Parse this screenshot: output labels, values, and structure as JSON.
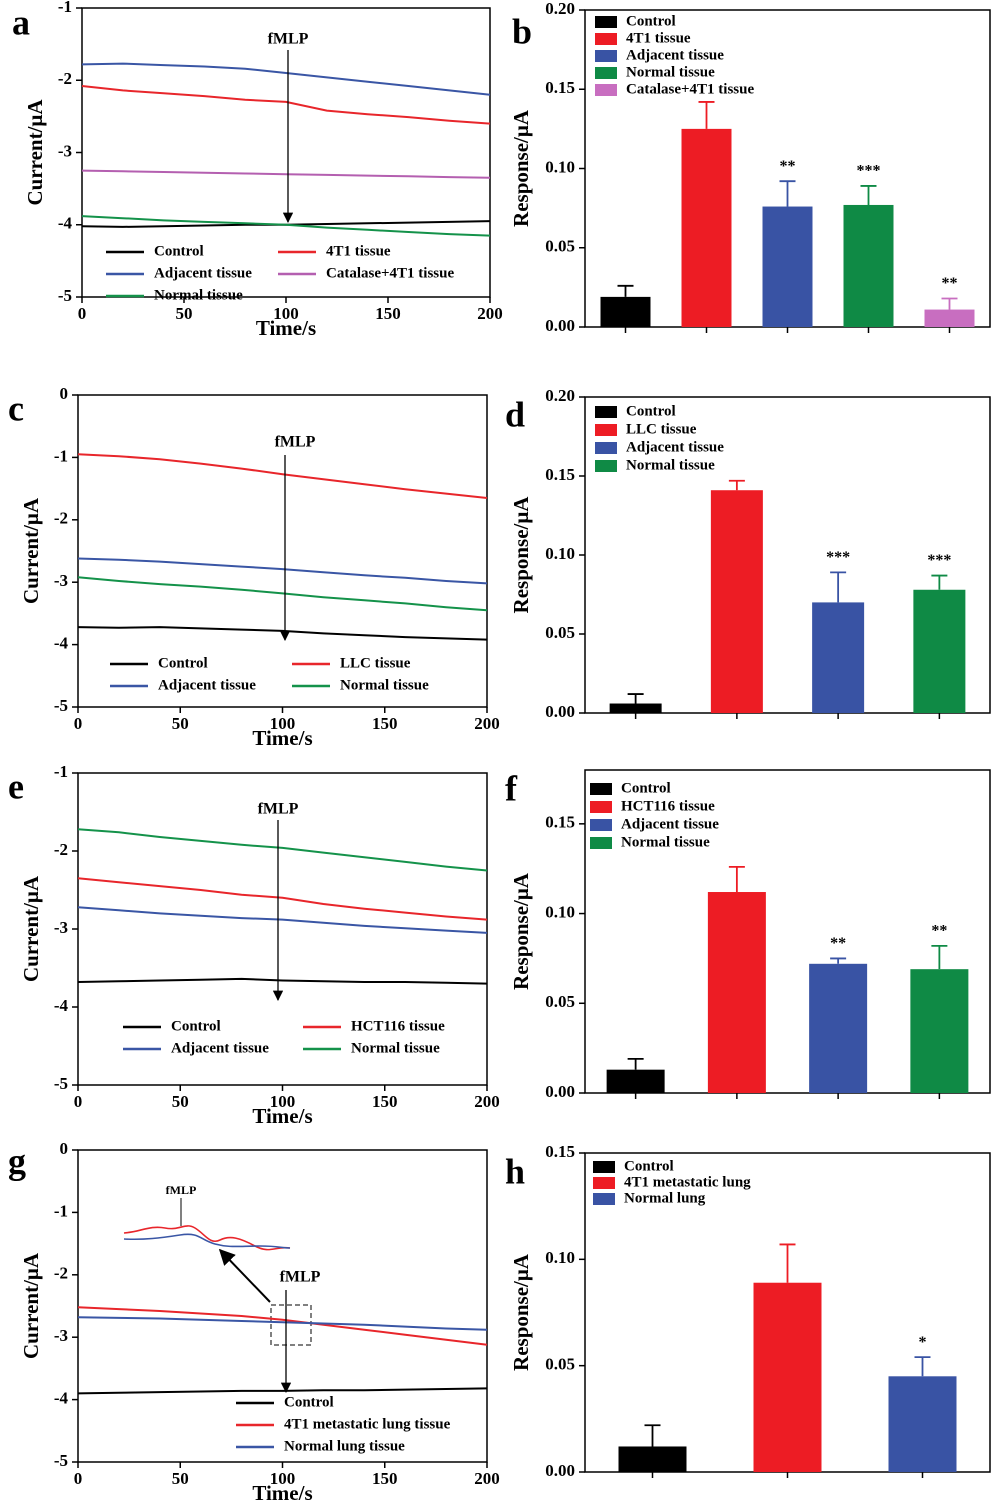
{
  "chart_data": [
    {
      "type": "line",
      "label": "a",
      "xlabel": "Time/s",
      "ylabel": "Current/μA",
      "annotation": "fMLP",
      "x": [
        0,
        20,
        40,
        60,
        80,
        100,
        120,
        140,
        160,
        180,
        200
      ],
      "xlim": [
        0,
        200
      ],
      "xticks": [
        0,
        50,
        100,
        150,
        200
      ],
      "ylim": [
        -5,
        -1
      ],
      "yticks": [
        -5,
        -4,
        -3,
        -2,
        -1
      ],
      "series": [
        {
          "name": "Control",
          "color": "#000000",
          "values": [
            -4.02,
            -4.03,
            -4.02,
            -4.01,
            -4.0,
            -4.0,
            -3.99,
            -3.98,
            -3.97,
            -3.96,
            -3.95
          ]
        },
        {
          "name": "4T1 tissue",
          "color": "#e8262b",
          "values": [
            -2.08,
            -2.14,
            -2.18,
            -2.22,
            -2.27,
            -2.3,
            -2.42,
            -2.47,
            -2.51,
            -2.56,
            -2.6
          ]
        },
        {
          "name": "Adjacent tissue",
          "color": "#3a56a5",
          "values": [
            -1.78,
            -1.77,
            -1.79,
            -1.81,
            -1.84,
            -1.9,
            -1.96,
            -2.02,
            -2.08,
            -2.14,
            -2.2
          ]
        },
        {
          "name": "Catalase+4T1 tissue",
          "color": "#b45fb0",
          "values": [
            -3.25,
            -3.26,
            -3.27,
            -3.28,
            -3.29,
            -3.3,
            -3.31,
            -3.32,
            -3.33,
            -3.34,
            -3.35
          ]
        },
        {
          "name": "Normal tissue",
          "color": "#14924a",
          "values": [
            -3.88,
            -3.91,
            -3.94,
            -3.96,
            -3.98,
            -4.0,
            -4.04,
            -4.07,
            -4.1,
            -4.13,
            -4.15
          ]
        }
      ]
    },
    {
      "type": "bar",
      "label": "b",
      "ylabel": "Response/μA",
      "ylim": [
        0,
        0.2
      ],
      "yticks": [
        {
          "value": 0,
          "label": "0.00"
        },
        {
          "value": 0.05,
          "label": "0.05"
        },
        {
          "value": 0.1,
          "label": "0.10"
        },
        {
          "value": 0.15,
          "label": "0.15"
        },
        {
          "value": 0.2,
          "label": "0.20"
        }
      ],
      "series": [
        {
          "name": "Control",
          "color": "#000000",
          "values": [
            0.019
          ],
          "errors": [
            0.007
          ]
        },
        {
          "name": "4T1 tissue",
          "color": "#ed1c24",
          "values": [
            0.125
          ],
          "errors": [
            0.017
          ]
        },
        {
          "name": "Adjacent tissue",
          "color": "#3953a4",
          "values": [
            0.076
          ],
          "errors": [
            0.016
          ],
          "significance": "**"
        },
        {
          "name": "Normal tissue",
          "color": "#0f8a45",
          "values": [
            0.077
          ],
          "errors": [
            0.012
          ],
          "significance": "***"
        },
        {
          "name": "Catalase+4T1 tissue",
          "color": "#c86ec0",
          "values": [
            0.011
          ],
          "errors": [
            0.007
          ],
          "significance": "**"
        }
      ]
    },
    {
      "type": "line",
      "label": "c",
      "xlabel": "Time/s",
      "ylabel": "Current/μA",
      "annotation": "fMLP",
      "x": [
        0,
        20,
        40,
        60,
        80,
        100,
        120,
        140,
        160,
        180,
        200
      ],
      "xlim": [
        0,
        200
      ],
      "xticks": [
        0,
        50,
        100,
        150,
        200
      ],
      "ylim": [
        -5,
        0
      ],
      "yticks": [
        -5,
        -4,
        -3,
        -2,
        -1,
        0
      ],
      "series": [
        {
          "name": "Control",
          "color": "#000000",
          "values": [
            -3.72,
            -3.73,
            -3.72,
            -3.74,
            -3.76,
            -3.78,
            -3.82,
            -3.85,
            -3.88,
            -3.9,
            -3.92
          ]
        },
        {
          "name": "LLC tissue",
          "color": "#e8262b",
          "values": [
            -0.95,
            -0.98,
            -1.03,
            -1.1,
            -1.18,
            -1.27,
            -1.35,
            -1.43,
            -1.51,
            -1.58,
            -1.65
          ]
        },
        {
          "name": "Adjacent tissue",
          "color": "#3a56a5",
          "values": [
            -2.62,
            -2.64,
            -2.67,
            -2.71,
            -2.75,
            -2.79,
            -2.84,
            -2.89,
            -2.93,
            -2.98,
            -3.02
          ]
        },
        {
          "name": "Normal tissue",
          "color": "#14924a",
          "values": [
            -2.92,
            -2.98,
            -3.03,
            -3.07,
            -3.12,
            -3.18,
            -3.24,
            -3.29,
            -3.34,
            -3.4,
            -3.45
          ]
        }
      ]
    },
    {
      "type": "bar",
      "label": "d",
      "ylabel": "Response/μA",
      "ylim": [
        0,
        0.2
      ],
      "yticks": [
        {
          "value": 0,
          "label": "0.00"
        },
        {
          "value": 0.05,
          "label": "0.05"
        },
        {
          "value": 0.1,
          "label": "0.10"
        },
        {
          "value": 0.15,
          "label": "0.15"
        },
        {
          "value": 0.2,
          "label": "0.20"
        }
      ],
      "series": [
        {
          "name": "Control",
          "color": "#000000",
          "values": [
            0.006
          ],
          "errors": [
            0.006
          ]
        },
        {
          "name": "LLC tissue",
          "color": "#ed1c24",
          "values": [
            0.141
          ],
          "errors": [
            0.006
          ]
        },
        {
          "name": "Adjacent tissue",
          "color": "#3953a4",
          "values": [
            0.07
          ],
          "errors": [
            0.019
          ],
          "significance": "***"
        },
        {
          "name": "Normal tissue",
          "color": "#0f8a45",
          "values": [
            0.078
          ],
          "errors": [
            0.009
          ],
          "significance": "***"
        }
      ]
    },
    {
      "type": "line",
      "label": "e",
      "xlabel": "Time/s",
      "ylabel": "Current/μA",
      "annotation": "fMLP",
      "x": [
        0,
        20,
        40,
        60,
        80,
        100,
        120,
        140,
        160,
        180,
        200
      ],
      "xlim": [
        0,
        200
      ],
      "xticks": [
        0,
        50,
        100,
        150,
        200
      ],
      "ylim": [
        -5,
        -1
      ],
      "yticks": [
        -5,
        -4,
        -3,
        -2,
        -1
      ],
      "series": [
        {
          "name": "Control",
          "color": "#000000",
          "values": [
            -3.68,
            -3.67,
            -3.66,
            -3.65,
            -3.64,
            -3.66,
            -3.67,
            -3.68,
            -3.68,
            -3.69,
            -3.7
          ]
        },
        {
          "name": "HCT116 tissue",
          "color": "#e8262b",
          "values": [
            -2.35,
            -2.4,
            -2.45,
            -2.5,
            -2.56,
            -2.6,
            -2.68,
            -2.74,
            -2.79,
            -2.84,
            -2.88
          ]
        },
        {
          "name": "Adjacent tissue",
          "color": "#3a56a5",
          "values": [
            -2.72,
            -2.76,
            -2.8,
            -2.83,
            -2.86,
            -2.88,
            -2.92,
            -2.96,
            -2.99,
            -3.02,
            -3.05
          ]
        },
        {
          "name": "Normal tissue",
          "color": "#14924a",
          "values": [
            -1.72,
            -1.76,
            -1.82,
            -1.87,
            -1.92,
            -1.96,
            -2.02,
            -2.08,
            -2.14,
            -2.2,
            -2.25
          ]
        }
      ]
    },
    {
      "type": "bar",
      "label": "f",
      "ylabel": "Response/μA",
      "ylim": [
        0,
        0.18
      ],
      "yticks": [
        {
          "value": 0,
          "label": "0.00"
        },
        {
          "value": 0.05,
          "label": "0.05"
        },
        {
          "value": 0.1,
          "label": "0.10"
        },
        {
          "value": 0.15,
          "label": "0.15"
        }
      ],
      "series": [
        {
          "name": "Control",
          "color": "#000000",
          "values": [
            0.013
          ],
          "errors": [
            0.006
          ]
        },
        {
          "name": "HCT116 tissue",
          "color": "#ed1c24",
          "values": [
            0.112
          ],
          "errors": [
            0.014
          ]
        },
        {
          "name": "Adjacent tissue",
          "color": "#3953a4",
          "values": [
            0.072
          ],
          "errors": [
            0.003
          ],
          "significance": "**"
        },
        {
          "name": "Normal tissue",
          "color": "#0f8a45",
          "values": [
            0.069
          ],
          "errors": [
            0.013
          ],
          "significance": "**"
        }
      ]
    },
    {
      "type": "line",
      "label": "g",
      "xlabel": "Time/s",
      "ylabel": "Current/μA",
      "annotation": "fMLP",
      "inset_label": "fMLP",
      "x": [
        0,
        20,
        40,
        60,
        80,
        100,
        120,
        140,
        160,
        180,
        200
      ],
      "xlim": [
        0,
        200
      ],
      "xticks": [
        0,
        50,
        100,
        150,
        200
      ],
      "ylim": [
        -5,
        0
      ],
      "yticks": [
        -5,
        -4,
        -3,
        -2,
        -1,
        0
      ],
      "series": [
        {
          "name": "Control",
          "color": "#000000",
          "values": [
            -3.9,
            -3.89,
            -3.88,
            -3.87,
            -3.86,
            -3.86,
            -3.85,
            -3.85,
            -3.84,
            -3.83,
            -3.82
          ]
        },
        {
          "name": "4T1 metastatic lung tissue",
          "color": "#e8262b",
          "values": [
            -2.52,
            -2.55,
            -2.58,
            -2.62,
            -2.66,
            -2.72,
            -2.8,
            -2.88,
            -2.96,
            -3.04,
            -3.12
          ]
        },
        {
          "name": "Normal lung tissue",
          "color": "#3a56a5",
          "values": [
            -2.68,
            -2.69,
            -2.7,
            -2.72,
            -2.74,
            -2.76,
            -2.78,
            -2.8,
            -2.83,
            -2.86,
            -2.88
          ]
        }
      ]
    },
    {
      "type": "bar",
      "label": "h",
      "ylabel": "Response/μA",
      "ylim": [
        0,
        0.15
      ],
      "yticks": [
        {
          "value": 0,
          "label": "0.00"
        },
        {
          "value": 0.05,
          "label": "0.05"
        },
        {
          "value": 0.1,
          "label": "0.10"
        },
        {
          "value": 0.15,
          "label": "0.15"
        }
      ],
      "series": [
        {
          "name": "Control",
          "color": "#000000",
          "values": [
            0.012
          ],
          "errors": [
            0.01
          ]
        },
        {
          "name": "4T1 metastatic lung",
          "color": "#ed1c24",
          "values": [
            0.089
          ],
          "errors": [
            0.018
          ]
        },
        {
          "name": "Normal lung",
          "color": "#3953a4",
          "values": [
            0.045
          ],
          "errors": [
            0.009
          ],
          "significance": "*"
        }
      ]
    }
  ]
}
